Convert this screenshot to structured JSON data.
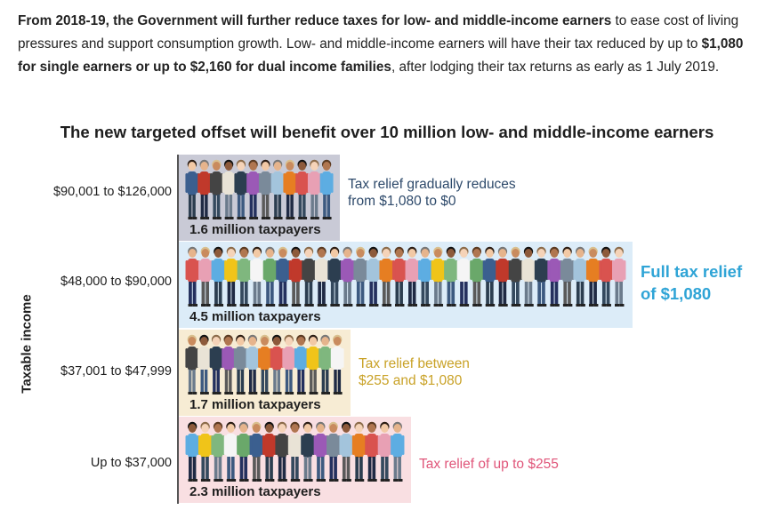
{
  "intro": {
    "bold1": "From 2018-19, the Government will further reduce taxes for low- and middle-income earners",
    "text1": " to ease cost of living pressures and support consumption growth. Low- and middle-income earners will have their tax reduced by up to ",
    "bold2": "$1,080 for single earners or up to $2,160 for dual income families",
    "text2": ", after lodging their tax returns as early as 1 July 2019."
  },
  "chart_data": {
    "type": "bar",
    "orientation": "horizontal",
    "title": "The new targeted offset will benefit over 10 million low- and middle-income earners",
    "ylabel": "Taxable income",
    "xlabel": "",
    "unit": "million taxpayers",
    "categories": [
      "$90,001 to $126,000",
      "$48,000 to $90,000",
      "$37,001 to $47,999",
      "Up to $37,000"
    ],
    "values": [
      1.6,
      4.5,
      1.7,
      2.3
    ],
    "bar_labels": [
      "1.6 million taxpayers",
      "4.5 million taxpayers",
      "1.7 million taxpayers",
      "2.3 million taxpayers"
    ],
    "annotations": [
      [
        "Tax relief gradually reduces",
        "from $1,080 to $0"
      ],
      [
        "Full tax relief",
        "of $1,080"
      ],
      [
        "Tax relief between",
        "$255 and $1,080"
      ],
      [
        "Tax relief of up to $255"
      ]
    ],
    "colors": {
      "band": [
        "#c9cad6",
        "#dcecf8",
        "#f7ecd4",
        "#f9dfe2"
      ],
      "note": [
        "#2e4a6b",
        "#2fa4d6",
        "#c9a227",
        "#e0567a"
      ]
    },
    "people_per_band": [
      12,
      34,
      13,
      17
    ]
  }
}
